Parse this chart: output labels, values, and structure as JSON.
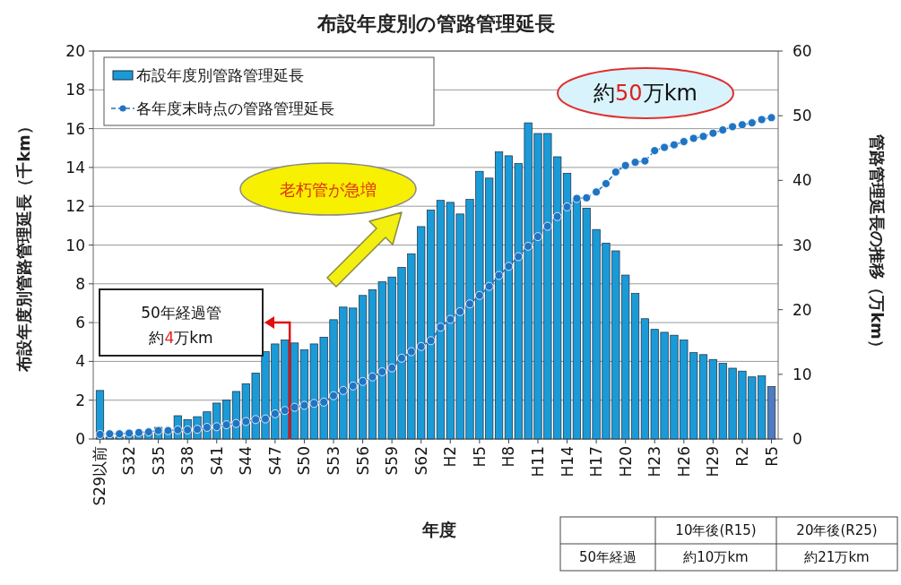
{
  "chart_data": {
    "type": "bar",
    "title": "布設年度別の管路管理延長",
    "xlabel": "年度",
    "ylabel": "布設年度別管路管理延長（千km）",
    "y2label": "管路管理延長の推移（万km）",
    "categories": [
      "S29以前",
      null,
      null,
      "S32",
      null,
      null,
      "S35",
      null,
      null,
      "S38",
      null,
      null,
      "S41",
      null,
      null,
      "S44",
      null,
      null,
      "S47",
      null,
      null,
      "S50",
      null,
      null,
      "S53",
      null,
      null,
      "S56",
      null,
      null,
      "S59",
      null,
      null,
      "S62",
      null,
      null,
      "H2",
      null,
      null,
      "H5",
      null,
      null,
      "H8",
      null,
      null,
      "H11",
      null,
      null,
      "H14",
      null,
      null,
      "H17",
      null,
      null,
      "H20",
      null,
      null,
      "H23",
      null,
      null,
      "H26",
      null,
      null,
      "H29",
      null,
      null,
      "R2",
      null,
      null,
      "R5"
    ],
    "series": [
      {
        "name": "布設年度別管路管理延長",
        "color": "#1b9ad8",
        "colors": [
          "#1b9ad8",
          "#1b9ad8",
          "#1b9ad8",
          "#1b9ad8",
          "#1b9ad8",
          "#1b9ad8",
          "#1b9ad8",
          "#1b9ad8",
          "#1b9ad8",
          "#1b9ad8",
          "#1b9ad8",
          "#1b9ad8",
          "#1b9ad8",
          "#1b9ad8",
          "#1b9ad8",
          "#1b9ad8",
          "#1b9ad8",
          "#1b9ad8",
          "#1b9ad8",
          "#1b9ad8",
          "#1b9ad8",
          "#1b9ad8",
          "#1b9ad8",
          "#1b9ad8",
          "#1b9ad8",
          "#1b9ad8",
          "#1b9ad8",
          "#1b9ad8",
          "#1b9ad8",
          "#1b9ad8",
          "#1b9ad8",
          "#1b9ad8",
          "#1b9ad8",
          "#1b9ad8",
          "#1b9ad8",
          "#1b9ad8",
          "#1b9ad8",
          "#1b9ad8",
          "#1b9ad8",
          "#1b9ad8",
          "#1b9ad8",
          "#1b9ad8",
          "#1b9ad8",
          "#1b9ad8",
          "#1b9ad8",
          "#1b9ad8",
          "#1b9ad8",
          "#1b9ad8",
          "#1b9ad8",
          "#1b9ad8",
          "#1b9ad8",
          "#1b9ad8",
          "#1b9ad8",
          "#1b9ad8",
          "#1b9ad8",
          "#1b9ad8",
          "#1b9ad8",
          "#1b9ad8",
          "#1b9ad8",
          "#1b9ad8",
          "#1b9ad8",
          "#1b9ad8",
          "#1b9ad8",
          "#1b9ad8",
          "#1b9ad8",
          "#1b9ad8",
          "#1b9ad8",
          "#1b9ad8",
          "#1b9ad8",
          "#4f7cc0"
        ],
        "values": [
          2.5,
          0.1,
          0.1,
          0.15,
          0.2,
          0.3,
          0.6,
          0.4,
          1.2,
          1.0,
          1.15,
          1.4,
          1.85,
          2.0,
          2.45,
          2.85,
          3.4,
          4.5,
          4.9,
          5.1,
          4.95,
          4.6,
          4.9,
          5.25,
          6.15,
          6.8,
          6.75,
          7.4,
          7.7,
          8.1,
          8.35,
          8.85,
          9.55,
          10.95,
          11.8,
          12.3,
          12.2,
          11.6,
          12.35,
          13.8,
          13.45,
          14.8,
          14.6,
          14.2,
          16.3,
          15.75,
          15.75,
          14.55,
          13.7,
          12.4,
          11.9,
          10.8,
          10.1,
          9.7,
          8.45,
          7.5,
          6.2,
          5.65,
          5.5,
          5.35,
          5.1,
          4.45,
          4.35,
          4.1,
          3.9,
          3.65,
          3.5,
          3.2,
          3.25,
          2.7
        ]
      },
      {
        "name": "各年度末時点の管路管理延長",
        "type": "line",
        "axis": "y2",
        "color": "#1f74c4",
        "marker": "circle",
        "line_style": "dashed",
        "values": [
          0.7,
          0.8,
          0.8,
          0.9,
          1.0,
          1.1,
          1.3,
          1.3,
          1.4,
          1.4,
          1.5,
          1.8,
          1.9,
          2.2,
          2.4,
          2.7,
          3.0,
          3.1,
          3.9,
          4.4,
          4.9,
          5.2,
          5.5,
          5.7,
          6.7,
          7.5,
          8.2,
          8.9,
          9.6,
          10.4,
          11.0,
          12.5,
          13.5,
          14.3,
          15.2,
          17.3,
          18.5,
          19.7,
          20.9,
          22.2,
          23.6,
          25.3,
          26.7,
          28.2,
          29.8,
          31.3,
          32.9,
          34.4,
          35.9,
          37.2,
          37.3,
          38.2,
          39.5,
          41.3,
          42.3,
          42.8,
          43.0,
          44.6,
          45.1,
          45.5,
          46.0,
          46.5,
          46.8,
          47.3,
          47.8,
          48.3,
          48.6,
          48.9,
          49.4,
          49.7
        ]
      }
    ],
    "ylim": [
      0,
      20
    ],
    "yticks": [
      0,
      2,
      4,
      6,
      8,
      10,
      12,
      14,
      16,
      18,
      20
    ],
    "y2lim": [
      0,
      60
    ],
    "y2ticks": [
      0,
      10,
      20,
      30,
      40,
      50,
      60
    ],
    "grid": "y",
    "legend": "top left",
    "annotations": [
      "約50万km",
      "老朽管が急増",
      "50年経過管",
      "約4万km",
      "10年後(R15)",
      "20年後(R25)",
      "50年経過",
      "約10万km",
      "約21万km"
    ]
  }
}
